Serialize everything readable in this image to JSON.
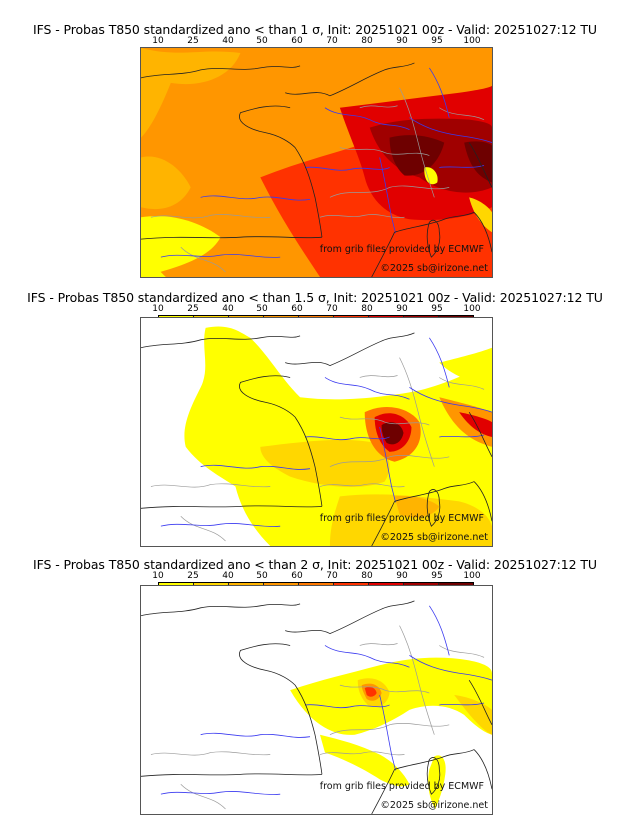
{
  "panels": [
    {
      "title": "IFS - Probas T850  standardized ano < than 1 σ, Init: 20251021 00z - Valid: 20251027:12 TU",
      "threshold": "1 σ",
      "intensity": "high"
    },
    {
      "title": "IFS - Probas T850  standardized ano < than 1.5 σ, Init: 20251021 00z - Valid: 20251027:12 TU",
      "threshold": "1.5 σ",
      "intensity": "medium"
    },
    {
      "title": "IFS - Probas T850  standardized ano < than 2 σ, Init: 20251021 00z - Valid: 20251027:12 TU",
      "threshold": "2 σ",
      "intensity": "low"
    }
  ],
  "colorbar": {
    "ticks": [
      "10",
      "25",
      "40",
      "50",
      "60",
      "70",
      "80",
      "90",
      "95",
      "100"
    ],
    "colors": [
      "#ffff00",
      "#ffd700",
      "#ffb400",
      "#ff9600",
      "#ff7800",
      "#ff3200",
      "#e10000",
      "#a00000",
      "#6e0000"
    ]
  },
  "credits": {
    "source": "from grib files provided by ECMWF",
    "copyright": "©2025 sb@irizone.net"
  },
  "map_colors": {
    "coast": "#222222",
    "rivers": "#3a3af0",
    "borders": "#9a9a9a"
  }
}
